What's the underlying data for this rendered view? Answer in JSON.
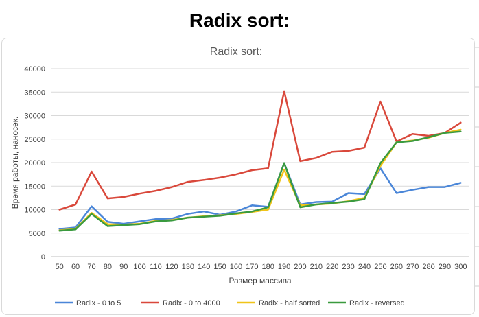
{
  "page": {
    "heading": "Radix sort:"
  },
  "chart_data": {
    "type": "line",
    "title": "Radix sort:",
    "xlabel": "Размер массива",
    "ylabel": "Время работы, наносек.",
    "ylim": [
      0,
      40000
    ],
    "yticks": [
      0,
      5000,
      10000,
      15000,
      20000,
      25000,
      30000,
      35000,
      40000
    ],
    "grid": true,
    "legend_position": "bottom",
    "categories": [
      50,
      60,
      70,
      80,
      90,
      100,
      110,
      120,
      130,
      140,
      150,
      160,
      170,
      180,
      190,
      200,
      210,
      220,
      230,
      240,
      250,
      260,
      270,
      280,
      290,
      300
    ],
    "series": [
      {
        "name": "Radix - 0 to 5",
        "color": "#4a86d8",
        "values": [
          5900,
          6200,
          10700,
          7400,
          7000,
          7500,
          8000,
          8100,
          9100,
          9600,
          8900,
          9600,
          10900,
          10600,
          19900,
          11100,
          11600,
          11700,
          13500,
          13300,
          18800,
          13500,
          14200,
          14800,
          14800,
          15700
        ]
      },
      {
        "name": "Radix - 0 to 4000",
        "color": "#d9483b",
        "values": [
          10000,
          11100,
          18100,
          12400,
          12700,
          13400,
          14000,
          14800,
          15900,
          16300,
          16800,
          17500,
          18400,
          18800,
          35200,
          20300,
          21000,
          22300,
          22500,
          23200,
          33000,
          24500,
          26100,
          25700,
          26300,
          28500
        ]
      },
      {
        "name": "Radix - half sorted",
        "color": "#f0c419",
        "values": [
          5600,
          5900,
          9300,
          6900,
          6800,
          7000,
          7600,
          7800,
          8300,
          8600,
          8800,
          9100,
          9500,
          10000,
          18500,
          10900,
          11100,
          11300,
          11800,
          12500,
          19300,
          24300,
          24700,
          25300,
          26300,
          27000
        ]
      },
      {
        "name": "Radix - reversed",
        "color": "#3a9a3f",
        "values": [
          5500,
          5800,
          9100,
          6500,
          6700,
          6900,
          7500,
          7700,
          8300,
          8500,
          8700,
          9200,
          9600,
          10500,
          19900,
          10500,
          11100,
          11400,
          11700,
          12200,
          19900,
          24300,
          24600,
          25400,
          26300,
          26600
        ]
      }
    ]
  }
}
